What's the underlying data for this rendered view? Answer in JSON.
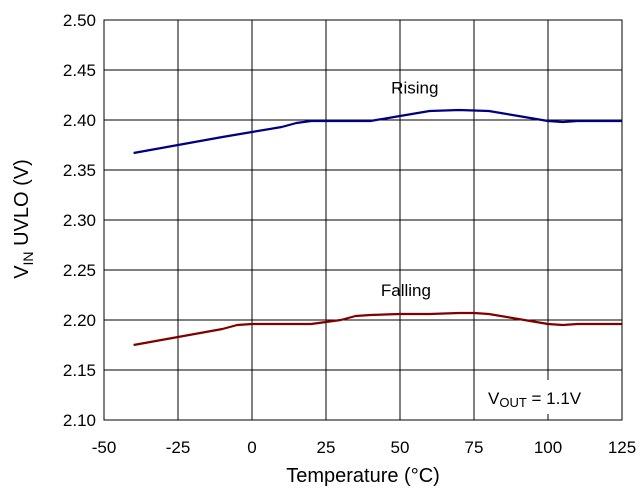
{
  "chart_data": {
    "type": "line",
    "title": "",
    "xlabel": "Temperature (°C)",
    "ylabel": {
      "main": "V",
      "sub": "IN",
      "rest": " UVLO (V)"
    },
    "xlim": [
      -50,
      125
    ],
    "ylim": [
      2.1,
      2.5
    ],
    "xticks": [
      -50,
      -25,
      0,
      25,
      50,
      75,
      100,
      125
    ],
    "yticks": [
      "2.10",
      "2.15",
      "2.20",
      "2.25",
      "2.30",
      "2.35",
      "2.40",
      "2.45",
      "2.50"
    ],
    "grid": true,
    "series": [
      {
        "name": "Rising",
        "color": "#000080",
        "x": [
          -40,
          -25,
          -10,
          0,
          10,
          15,
          20,
          30,
          40,
          50,
          60,
          70,
          80,
          90,
          100,
          105,
          110,
          125
        ],
        "y": [
          2.367,
          2.375,
          2.383,
          2.388,
          2.393,
          2.397,
          2.399,
          2.399,
          2.399,
          2.404,
          2.409,
          2.41,
          2.409,
          2.404,
          2.399,
          2.398,
          2.399,
          2.399
        ]
      },
      {
        "name": "Falling",
        "color": "#800000",
        "x": [
          -40,
          -25,
          -10,
          -5,
          0,
          10,
          20,
          25,
          30,
          35,
          40,
          50,
          60,
          70,
          75,
          80,
          90,
          100,
          105,
          110,
          125
        ],
        "y": [
          2.175,
          2.183,
          2.191,
          2.195,
          2.196,
          2.196,
          2.196,
          2.198,
          2.2,
          2.204,
          2.205,
          2.206,
          2.206,
          2.207,
          2.207,
          2.206,
          2.201,
          2.196,
          2.195,
          2.196,
          2.196
        ]
      }
    ],
    "annotation": {
      "main": "V",
      "sub": "OUT",
      "rest": " = 1.1V"
    }
  }
}
